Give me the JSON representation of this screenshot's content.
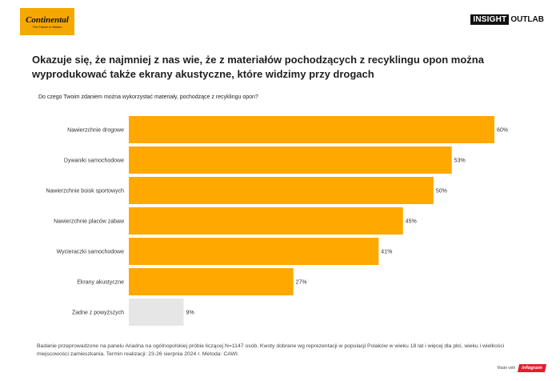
{
  "brand": {
    "logo_name": "Continental",
    "logo_tagline": "The Future in Motion",
    "partner_left": "INSIGHT",
    "partner_right": "OUTLAB",
    "colors": {
      "logo_bg": "#f5a800",
      "partner_bg": "#111111"
    }
  },
  "headline": "Okazuje się, że najmniej z nas wie, że z materiałów pochodzących z recyklingu opon można wyprodukować także ekrany akustyczne, które widzimy przy drogach",
  "question": "Do czego Twoim zdaniem można wykorzystać materiały, pochodzące z recyklingu opon?",
  "chart_data": {
    "type": "bar",
    "orientation": "horizontal",
    "categories": [
      "Nawierzchnie drogowe",
      "Dywaniki samochodowe",
      "Nawierzchnie boisk sportowych",
      "Nawierzchnie placów zabaw",
      "Wycieraczki samochodowe",
      "Ekrany akustyczne",
      "Żadne z powyższych"
    ],
    "values": [
      60,
      53,
      50,
      45,
      41,
      27,
      9
    ],
    "value_labels": [
      "60%",
      "53%",
      "50%",
      "45%",
      "41%",
      "27%",
      "9%"
    ],
    "unit": "%",
    "xlim": [
      0,
      60
    ],
    "grid": false,
    "legend": "none",
    "colors": {
      "bar": "#ffa800",
      "bar_none": "#e6e6e6"
    }
  },
  "footnote": "Badanie przeprowadzone na panelu Ariadna na ogólnopolskiej próbie liczącej N=1147 osób. Kwoty dobrane wg reprezentacji w populacji Polaków w wieku 18 lat i więcej dla płci, wieku i wielkości miejscowości zamieszkania. Termin realizacji: 23-26 sierpnia 2024 r. Metoda: CAWI.",
  "made_with": {
    "prefix": "Made with",
    "brand": "infogram"
  }
}
